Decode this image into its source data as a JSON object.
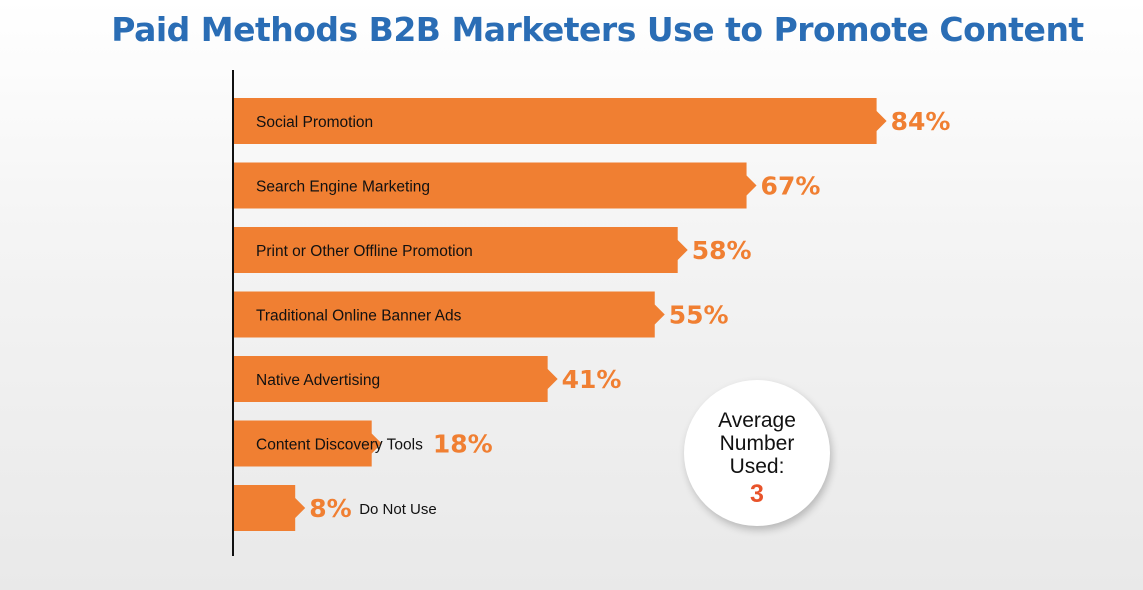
{
  "chart_data": {
    "type": "bar",
    "orientation": "horizontal",
    "title": "Paid Methods B2B Marketers Use to Promote Content",
    "categories": [
      "Social Promotion",
      "Search Engine Marketing",
      "Print or Other Offline Promotion",
      "Traditional Online Banner Ads",
      "Native Advertising",
      "Content Discovery Tools",
      "Do Not Use"
    ],
    "values": [
      84,
      67,
      58,
      55,
      41,
      18,
      8
    ],
    "value_labels": [
      "84%",
      "67%",
      "58%",
      "55%",
      "41%",
      "18%",
      "8%"
    ],
    "xlim": [
      0,
      100
    ],
    "grid": false,
    "bar_color": "#f07f32",
    "label_color": "#f07f32",
    "title_color": "#2a6db5"
  },
  "callout": {
    "label_line1": "Average",
    "label_line2": "Number",
    "label_line3": "Used:",
    "value": "3",
    "value_color": "#e8532a"
  }
}
